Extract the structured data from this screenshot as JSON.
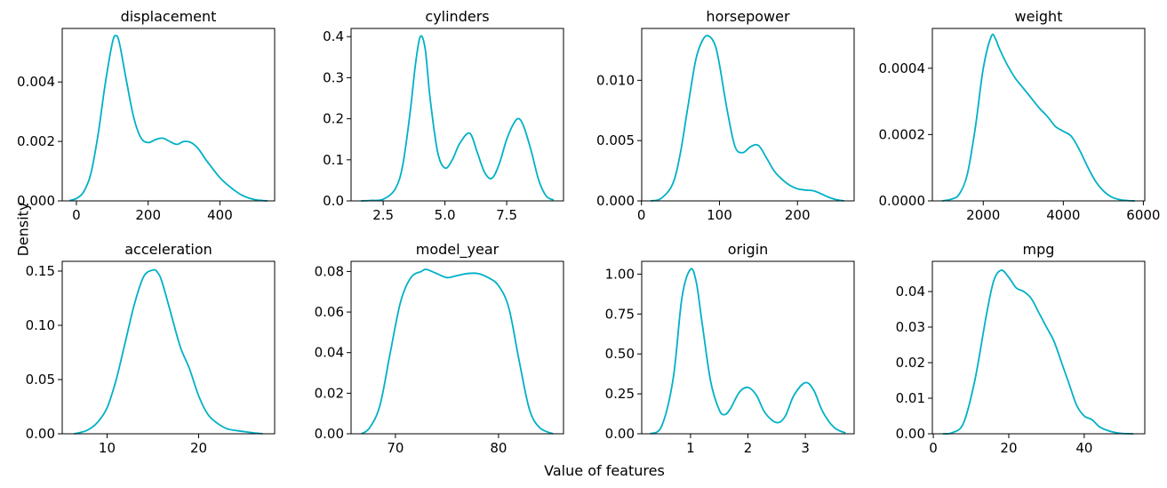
{
  "figure": {
    "ylabel": "Density",
    "xlabel": "Value of features",
    "line_color": "#00b1c6"
  },
  "chart_data": [
    {
      "type": "line",
      "title": "displacement",
      "xlim": [
        -39.47,
        552.47
      ],
      "ylim": [
        0,
        0.0058
      ],
      "xticks": [
        {
          "v": 0,
          "label": "0"
        },
        {
          "v": 200,
          "label": "200"
        },
        {
          "v": 400,
          "label": "400"
        }
      ],
      "yticks": [
        {
          "v": 0,
          "label": "0.000"
        },
        {
          "v": 0.002,
          "label": "0.002"
        },
        {
          "v": 0.004,
          "label": "0.004"
        }
      ],
      "series": [
        {
          "x": [
            -20,
            0,
            20,
            40,
            60,
            80,
            100,
            110,
            120,
            140,
            160,
            180,
            200,
            220,
            240,
            260,
            280,
            300,
            320,
            340,
            360,
            380,
            400,
            420,
            440,
            460,
            480,
            500,
            520,
            533
          ],
          "y": [
            1e-05,
            8e-05,
            0.0003,
            0.0009,
            0.0022,
            0.0039,
            0.0053,
            0.00556,
            0.0053,
            0.004,
            0.0028,
            0.00212,
            0.00196,
            0.00206,
            0.00211,
            0.002,
            0.0019,
            0.002,
            0.00196,
            0.00175,
            0.0014,
            0.00108,
            0.00078,
            0.00055,
            0.00036,
            0.0002,
            0.0001,
            4e-05,
            1e-05,
            0.0
          ]
        }
      ]
    },
    {
      "type": "line",
      "title": "cylinders",
      "xlim": [
        1.2,
        9.8
      ],
      "ylim": [
        0,
        0.42
      ],
      "xticks": [
        {
          "v": 2.5,
          "label": "2.5"
        },
        {
          "v": 5.0,
          "label": "5.0"
        },
        {
          "v": 7.5,
          "label": "7.5"
        }
      ],
      "yticks": [
        {
          "v": 0,
          "label": "0.0"
        },
        {
          "v": 0.1,
          "label": "0.1"
        },
        {
          "v": 0.2,
          "label": "0.2"
        },
        {
          "v": 0.3,
          "label": "0.3"
        },
        {
          "v": 0.4,
          "label": "0.4"
        }
      ],
      "series": [
        {
          "x": [
            1.6,
            2.0,
            2.5,
            3.0,
            3.3,
            3.6,
            3.8,
            4.0,
            4.2,
            4.4,
            4.7,
            5.0,
            5.3,
            5.6,
            6.0,
            6.3,
            6.6,
            6.9,
            7.2,
            7.5,
            7.8,
            8.0,
            8.2,
            8.5,
            8.8,
            9.1,
            9.4
          ],
          "y": [
            0.0,
            0.001,
            0.004,
            0.03,
            0.09,
            0.22,
            0.33,
            0.4,
            0.37,
            0.25,
            0.12,
            0.08,
            0.1,
            0.14,
            0.165,
            0.12,
            0.07,
            0.055,
            0.09,
            0.15,
            0.19,
            0.2,
            0.18,
            0.12,
            0.05,
            0.012,
            0.002
          ]
        }
      ]
    },
    {
      "type": "line",
      "title": "horsepower",
      "xlim": [
        0.33,
        272.67
      ],
      "ylim": [
        0,
        0.0143
      ],
      "xticks": [
        {
          "v": 0,
          "label": "0"
        },
        {
          "v": 100,
          "label": "100"
        },
        {
          "v": 200,
          "label": "200"
        }
      ],
      "yticks": [
        {
          "v": 0,
          "label": "0.000"
        },
        {
          "v": 0.005,
          "label": "0.005"
        },
        {
          "v": 0.01,
          "label": "0.010"
        }
      ],
      "series": [
        {
          "x": [
            12,
            25,
            40,
            50,
            60,
            70,
            80,
            88,
            95,
            100,
            110,
            120,
            130,
            140,
            150,
            160,
            170,
            180,
            190,
            200,
            210,
            220,
            230,
            240,
            250,
            260
          ],
          "y": [
            0.0,
            0.0002,
            0.0014,
            0.004,
            0.008,
            0.0118,
            0.0135,
            0.0136,
            0.0128,
            0.0113,
            0.0075,
            0.0045,
            0.004,
            0.0045,
            0.0046,
            0.0036,
            0.0025,
            0.0018,
            0.0013,
            0.001,
            0.0009,
            0.00085,
            0.0006,
            0.0003,
            0.0001,
            0.0
          ]
        }
      ]
    },
    {
      "type": "line",
      "title": "weight",
      "xlim": [
        728.27,
        6035.73
      ],
      "ylim": [
        0,
        0.00052
      ],
      "xticks": [
        {
          "v": 2000,
          "label": "2000"
        },
        {
          "v": 4000,
          "label": "4000"
        },
        {
          "v": 6000,
          "label": "6000"
        }
      ],
      "yticks": [
        {
          "v": 0,
          "label": "0.0000"
        },
        {
          "v": 0.0002,
          "label": "0.0002"
        },
        {
          "v": 0.0004,
          "label": "0.0004"
        }
      ],
      "series": [
        {
          "x": [
            970,
            1200,
            1400,
            1600,
            1800,
            2000,
            2200,
            2300,
            2400,
            2600,
            2800,
            3000,
            3200,
            3400,
            3600,
            3800,
            4000,
            4200,
            4400,
            4600,
            4800,
            5000,
            5200,
            5400,
            5600,
            5790
          ],
          "y": [
            0.0,
            5e-06,
            2e-05,
            8e-05,
            0.00022,
            0.0004,
            0.000496,
            0.00049,
            0.00046,
            0.00041,
            0.00037,
            0.00034,
            0.00031,
            0.00028,
            0.000255,
            0.000225,
            0.00021,
            0.000195,
            0.000155,
            0.000105,
            6e-05,
            3e-05,
            1.2e-05,
            4e-06,
            1e-06,
            0.0
          ]
        }
      ]
    },
    {
      "type": "line",
      "title": "acceleration",
      "xlim": [
        5.1,
        28.3
      ],
      "ylim": [
        0,
        0.159
      ],
      "xticks": [
        {
          "v": 10,
          "label": "10"
        },
        {
          "v": 20,
          "label": "20"
        }
      ],
      "yticks": [
        {
          "v": 0,
          "label": "0.00"
        },
        {
          "v": 0.05,
          "label": "0.05"
        },
        {
          "v": 0.1,
          "label": "0.10"
        },
        {
          "v": 0.15,
          "label": "0.15"
        }
      ],
      "series": [
        {
          "x": [
            6.4,
            7.0,
            8.0,
            9.0,
            10.0,
            11.0,
            12.0,
            13.0,
            14.0,
            15.0,
            15.5,
            16.0,
            17.0,
            18.0,
            19.0,
            20.0,
            21.0,
            22.0,
            23.0,
            24.0,
            25.0,
            26.0,
            27.0
          ],
          "y": [
            0.0,
            0.001,
            0.004,
            0.011,
            0.024,
            0.05,
            0.085,
            0.12,
            0.145,
            0.151,
            0.149,
            0.14,
            0.11,
            0.08,
            0.06,
            0.035,
            0.018,
            0.01,
            0.005,
            0.003,
            0.002,
            0.0008,
            0.0001
          ]
        }
      ]
    },
    {
      "type": "line",
      "title": "model_year",
      "xlim": [
        65.7,
        86.3
      ],
      "ylim": [
        0,
        0.085
      ],
      "xticks": [
        {
          "v": 70,
          "label": "70"
        },
        {
          "v": 80,
          "label": "80"
        }
      ],
      "yticks": [
        {
          "v": 0,
          "label": "0.00"
        },
        {
          "v": 0.02,
          "label": "0.02"
        },
        {
          "v": 0.04,
          "label": "0.04"
        },
        {
          "v": 0.06,
          "label": "0.06"
        },
        {
          "v": 0.08,
          "label": "0.08"
        }
      ],
      "series": [
        {
          "x": [
            66.7,
            67.5,
            68.5,
            69.5,
            70.5,
            71.5,
            72.5,
            73.0,
            74.0,
            75.0,
            76.0,
            77.0,
            78.0,
            79.0,
            80.0,
            81.0,
            82.0,
            83.0,
            84.0,
            85.3
          ],
          "y": [
            0.0,
            0.003,
            0.014,
            0.04,
            0.065,
            0.077,
            0.08,
            0.081,
            0.079,
            0.077,
            0.078,
            0.079,
            0.079,
            0.077,
            0.073,
            0.062,
            0.036,
            0.012,
            0.003,
            0.0
          ]
        }
      ]
    },
    {
      "type": "line",
      "title": "origin",
      "xlim": [
        0.15,
        3.85
      ],
      "ylim": [
        0,
        1.08
      ],
      "xticks": [
        {
          "v": 1,
          "label": "1"
        },
        {
          "v": 2,
          "label": "2"
        },
        {
          "v": 3,
          "label": "3"
        }
      ],
      "yticks": [
        {
          "v": 0,
          "label": "0.00"
        },
        {
          "v": 0.25,
          "label": "0.25"
        },
        {
          "v": 0.5,
          "label": "0.50"
        },
        {
          "v": 0.75,
          "label": "0.75"
        },
        {
          "v": 1.0,
          "label": "1.00"
        }
      ],
      "series": [
        {
          "x": [
            0.3,
            0.5,
            0.7,
            0.85,
            1.0,
            1.1,
            1.2,
            1.35,
            1.5,
            1.6,
            1.7,
            1.85,
            2.0,
            2.15,
            2.3,
            2.5,
            2.65,
            2.8,
            3.0,
            3.15,
            3.3,
            3.5,
            3.7
          ],
          "y": [
            0.0,
            0.05,
            0.35,
            0.85,
            1.03,
            0.95,
            0.7,
            0.33,
            0.15,
            0.12,
            0.16,
            0.26,
            0.29,
            0.24,
            0.13,
            0.07,
            0.11,
            0.24,
            0.32,
            0.27,
            0.14,
            0.04,
            0.005
          ]
        }
      ]
    },
    {
      "type": "line",
      "title": "mpg",
      "xlim": [
        -0.25,
        56.05
      ],
      "ylim": [
        0,
        0.0485
      ],
      "xticks": [
        {
          "v": 0,
          "label": "0"
        },
        {
          "v": 20,
          "label": "20"
        },
        {
          "v": 40,
          "label": "40"
        }
      ],
      "yticks": [
        {
          "v": 0,
          "label": "0.00"
        },
        {
          "v": 0.01,
          "label": "0.01"
        },
        {
          "v": 0.02,
          "label": "0.02"
        },
        {
          "v": 0.03,
          "label": "0.03"
        },
        {
          "v": 0.04,
          "label": "0.04"
        }
      ],
      "series": [
        {
          "x": [
            2.5,
            5,
            8,
            11,
            14,
            16,
            18,
            20,
            22,
            24,
            26,
            28,
            30,
            32,
            34,
            36,
            38,
            40,
            42,
            44,
            46,
            48,
            50,
            53
          ],
          "y": [
            0.0,
            0.0003,
            0.003,
            0.015,
            0.033,
            0.043,
            0.046,
            0.044,
            0.041,
            0.04,
            0.038,
            0.034,
            0.03,
            0.026,
            0.02,
            0.014,
            0.008,
            0.005,
            0.004,
            0.002,
            0.001,
            0.0004,
            0.0001,
            0.0
          ]
        }
      ]
    }
  ]
}
